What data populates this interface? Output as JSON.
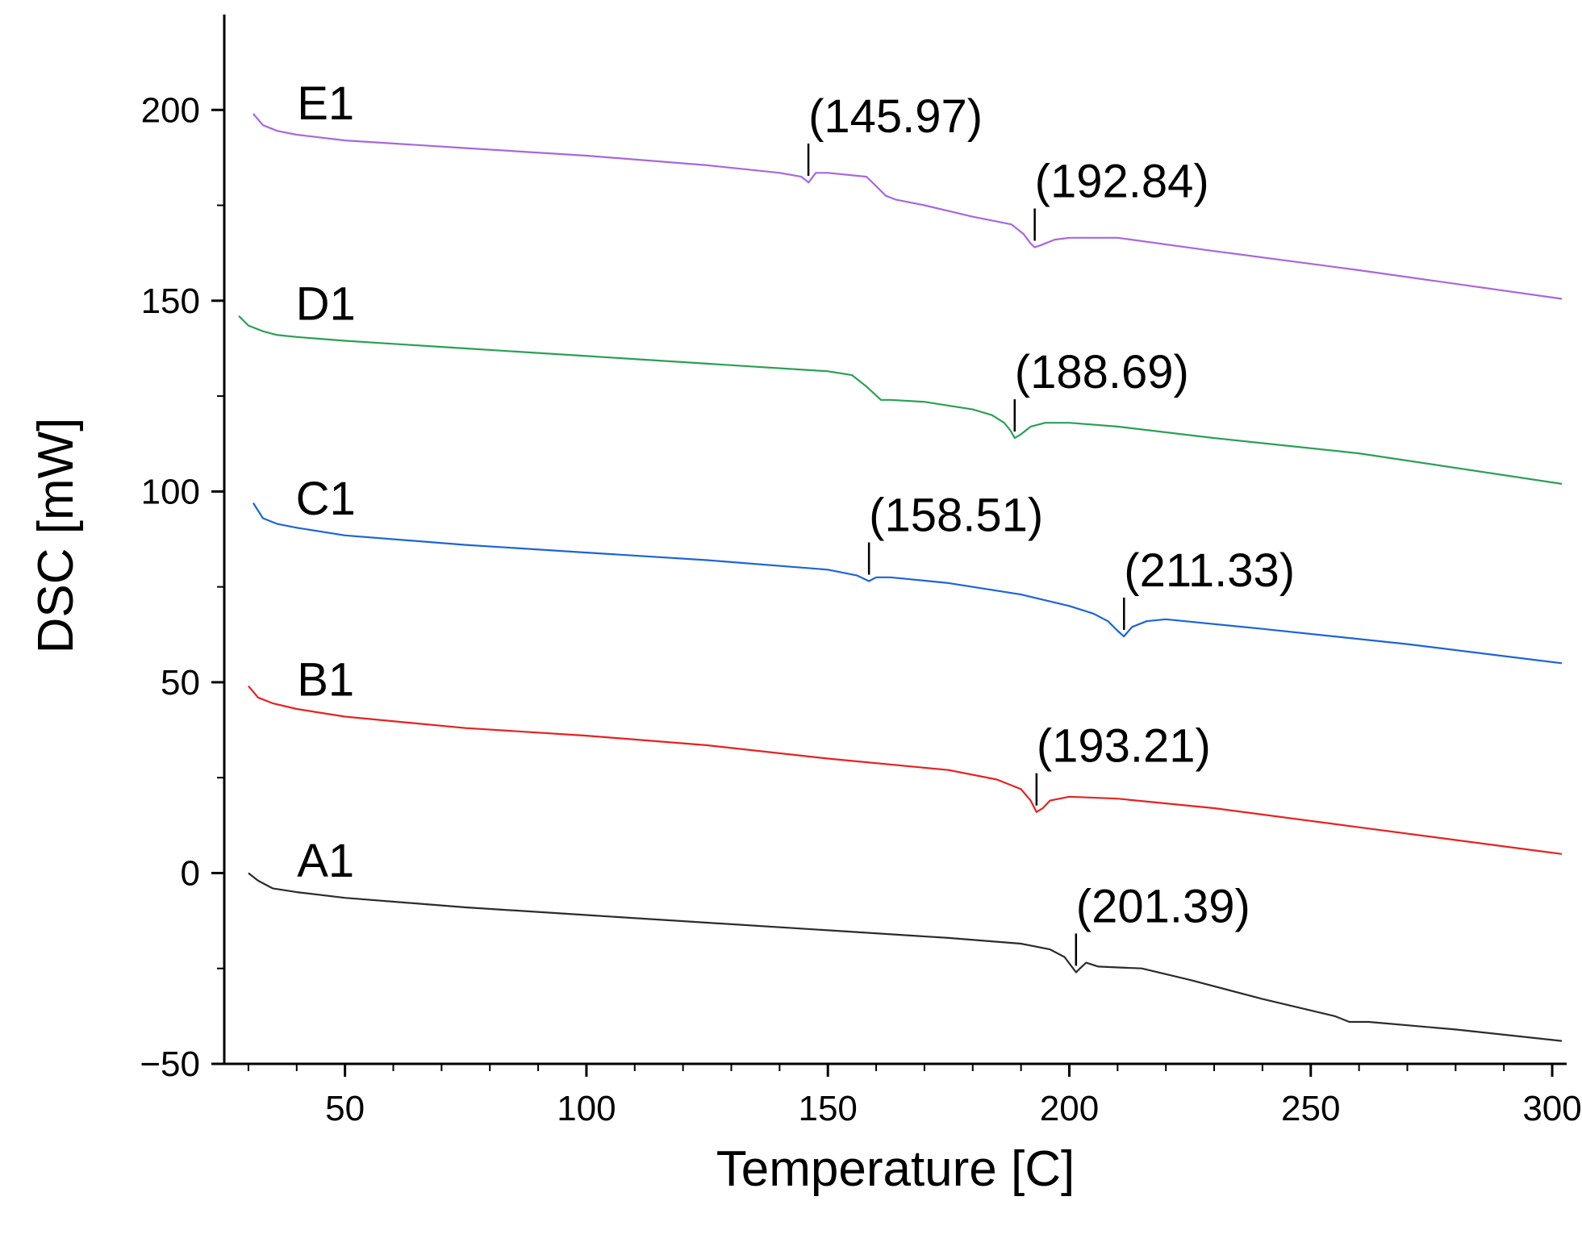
{
  "chart_data": {
    "type": "line",
    "title": "",
    "xlabel": "Temperature [C]",
    "ylabel": "DSC [mW]",
    "xlim": [
      25,
      303
    ],
    "ylim": [
      -50,
      225
    ],
    "xticks": [
      50,
      100,
      150,
      200,
      250,
      300
    ],
    "yticks": [
      -50,
      0,
      50,
      100,
      150,
      200
    ],
    "xtick_labels": [
      "50",
      "100",
      "150",
      "200",
      "250",
      "300"
    ],
    "ytick_labels": [
      "−50",
      "0",
      "50",
      "100",
      "150",
      "200"
    ],
    "grid": false,
    "legend": "inline labels",
    "series": [
      {
        "name": "A1",
        "color": "#2b2b2b",
        "x": [
          30,
          32,
          35,
          40,
          50,
          75,
          100,
          125,
          150,
          175,
          190,
          196,
          199,
          200.5,
          201.4,
          202.2,
          203.5,
          206,
          215,
          225,
          240,
          255,
          258,
          262,
          280,
          302
        ],
        "y": [
          0,
          -2,
          -4,
          -5,
          -6.5,
          -9,
          -11,
          -13,
          -15,
          -17,
          -18.5,
          -20,
          -22,
          -24.5,
          -26,
          -25,
          -23.5,
          -24.5,
          -25,
          -28,
          -33,
          -37.5,
          -39,
          -39,
          -41,
          -44
        ],
        "peaks": [
          {
            "x": 201.39,
            "label": "(201.39)"
          }
        ]
      },
      {
        "name": "B1",
        "color": "#e8201f",
        "x": [
          30,
          32,
          35,
          40,
          50,
          75,
          100,
          125,
          150,
          175,
          185,
          190,
          192,
          193.2,
          194.5,
          196,
          200,
          210,
          230,
          260,
          302
        ],
        "y": [
          49,
          46,
          44.5,
          43,
          41,
          38,
          36,
          33.5,
          30,
          27,
          24.5,
          22,
          19,
          16,
          17,
          19,
          20,
          19.5,
          17,
          12,
          5
        ],
        "peaks": [
          {
            "x": 193.21,
            "label": "(193.21)"
          }
        ]
      },
      {
        "name": "C1",
        "color": "#1c64d8",
        "x": [
          31,
          33,
          36,
          40,
          50,
          75,
          100,
          125,
          150,
          156,
          158.5,
          160,
          163,
          175,
          190,
          200,
          205,
          208,
          210,
          211.3,
          213,
          216,
          220,
          240,
          270,
          302
        ],
        "y": [
          97,
          93,
          91.5,
          90.5,
          88.5,
          86,
          84,
          82,
          79.5,
          78,
          76.5,
          77.5,
          77.5,
          76,
          73,
          70,
          68,
          66,
          63.5,
          62,
          64.5,
          66,
          66.5,
          64,
          60,
          55
        ],
        "peaks": [
          {
            "x": 158.51,
            "label": "(158.51)"
          },
          {
            "x": 211.33,
            "label": "(211.33)"
          }
        ]
      },
      {
        "name": "D1",
        "color": "#2aa055",
        "x": [
          28,
          30,
          33,
          36,
          40,
          50,
          75,
          100,
          125,
          150,
          155,
          158,
          161,
          163,
          170,
          175,
          180,
          184,
          186.5,
          187.8,
          188.7,
          190,
          192,
          195,
          200,
          210,
          230,
          260,
          302
        ],
        "y": [
          146,
          143.5,
          142,
          141,
          140.5,
          139.5,
          137.5,
          135.5,
          133.5,
          131.5,
          130.5,
          127.5,
          124,
          124,
          123.5,
          122.5,
          121.5,
          120,
          118,
          116,
          114,
          115,
          117,
          118,
          118,
          117,
          114,
          110,
          102
        ],
        "peaks": [
          {
            "x": 188.69,
            "label": "(188.69)"
          }
        ]
      },
      {
        "name": "E1",
        "color": "#a866e0",
        "x": [
          31,
          33,
          36,
          40,
          50,
          75,
          100,
          125,
          140,
          144.5,
          146,
          147.5,
          150,
          158,
          160,
          162,
          164,
          170,
          180,
          188,
          190.5,
          192,
          192.8,
          194,
          197,
          200,
          210,
          230,
          260,
          302
        ],
        "y": [
          199,
          196,
          194.5,
          193.5,
          192,
          190,
          188,
          185.5,
          183.5,
          182.5,
          181,
          183.5,
          183.5,
          182.5,
          180,
          177.5,
          176.5,
          175,
          172,
          170,
          167.5,
          165,
          164,
          164.5,
          166,
          166.5,
          166.5,
          163,
          158,
          150.5
        ],
        "peaks": [
          {
            "x": 145.97,
            "label": "(145.97)"
          },
          {
            "x": 192.84,
            "label": "(192.84)"
          }
        ]
      }
    ]
  }
}
